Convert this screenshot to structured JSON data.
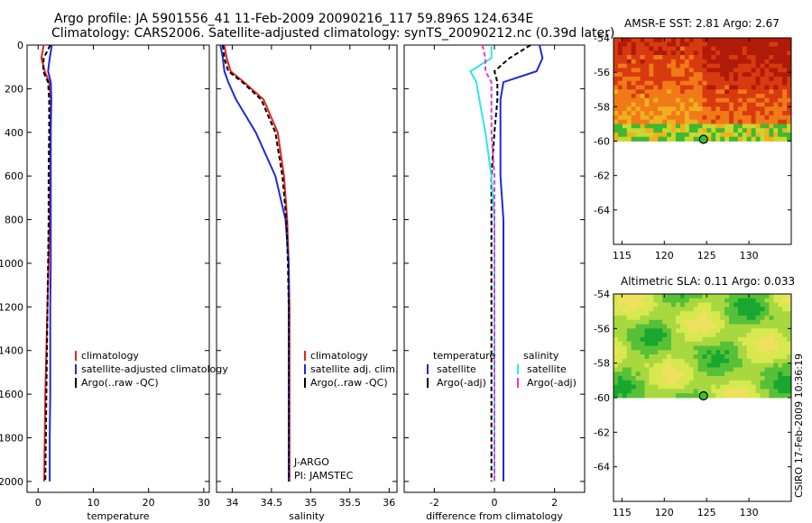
{
  "header": {
    "title_line1": "Argo profile: JA 5901556_41 11-Feb-2009 20090216_117 59.896S 124.634E",
    "title_line2": "Climatology: CARS2006. Satellite-adjusted climatology: synTS_20090212.nc (0.39d later)"
  },
  "side_label": "CSIRO 17-Feb-2009 10:36:19",
  "colors": {
    "climatology": "#e8241b",
    "satellite": "#1f2bd8",
    "argo": "#000000",
    "satellite_salinity": "#2ee6e6",
    "argo_salinity_adj": "#e23ad8"
  },
  "chart_data": [
    {
      "type": "line",
      "xlabel": "temperature",
      "ylim": [
        2050,
        0
      ],
      "xlim": [
        -2,
        31
      ],
      "yticks": [
        0,
        200,
        400,
        600,
        800,
        1000,
        1200,
        1400,
        1600,
        1800,
        2000
      ],
      "xticks": [
        0,
        10,
        20,
        30
      ],
      "legend": [
        "climatology",
        "satellite-adjusted climatology",
        "Argo(..raw -QC)"
      ],
      "series": [
        {
          "name": "climatology",
          "x": [
            1.0,
            0.6,
            1.2,
            2.0,
            2.3,
            2.2,
            2.2,
            2.1,
            1.9,
            1.7,
            1.5,
            1.3,
            1.2,
            1.1
          ],
          "y": [
            0,
            60,
            120,
            170,
            250,
            400,
            600,
            800,
            1000,
            1200,
            1400,
            1600,
            1800,
            2000
          ]
        },
        {
          "name": "satellite-adjusted climatology",
          "x": [
            2.5,
            2.1,
            1.8,
            2.3,
            2.4,
            2.3,
            2.3,
            2.3,
            2.3,
            2.2,
            2.2,
            2.2,
            2.1,
            2.1
          ],
          "y": [
            0,
            60,
            120,
            170,
            250,
            400,
            600,
            800,
            1000,
            1200,
            1400,
            1600,
            1800,
            2000
          ]
        },
        {
          "name": "Argo(..raw -QC)",
          "x": [
            2.2,
            1.0,
            0.9,
            1.8,
            2.0,
            2.0,
            1.9,
            1.9,
            1.8,
            1.7,
            1.6,
            1.5,
            1.4,
            1.3
          ],
          "y": [
            0,
            60,
            120,
            170,
            250,
            400,
            600,
            800,
            1000,
            1200,
            1400,
            1600,
            1800,
            2000
          ]
        }
      ]
    },
    {
      "type": "line",
      "xlabel": "salinity",
      "ylim": [
        2050,
        0
      ],
      "xlim": [
        33.8,
        36.1
      ],
      "xticks": [
        34,
        34.5,
        35,
        35.5,
        36
      ],
      "legend": [
        "climatology",
        "satellite adj. clim.",
        "Argo(..raw -QC)"
      ],
      "annotation": [
        "J-ARGO",
        "PI: JAMSTEC"
      ],
      "series": [
        {
          "name": "climatology",
          "x": [
            33.9,
            33.93,
            33.98,
            34.15,
            34.4,
            34.58,
            34.66,
            34.7,
            34.72,
            34.73,
            34.73,
            34.73,
            34.73,
            34.73
          ],
          "y": [
            0,
            60,
            120,
            170,
            250,
            400,
            600,
            800,
            1000,
            1200,
            1400,
            1600,
            1800,
            2000
          ]
        },
        {
          "name": "satellite adj. clim.",
          "x": [
            33.85,
            33.88,
            33.9,
            33.95,
            34.05,
            34.3,
            34.55,
            34.68,
            34.72,
            34.72,
            34.72,
            34.72,
            34.72,
            34.72
          ],
          "y": [
            0,
            60,
            120,
            170,
            250,
            400,
            600,
            800,
            1000,
            1200,
            1400,
            1600,
            1800,
            2000
          ]
        },
        {
          "name": "Argo(..raw -QC)",
          "x": [
            33.88,
            33.9,
            33.95,
            34.13,
            34.37,
            34.55,
            34.64,
            34.69,
            34.71,
            34.72,
            34.72,
            34.72,
            34.72,
            34.72
          ],
          "y": [
            0,
            60,
            120,
            170,
            250,
            400,
            600,
            800,
            1000,
            1200,
            1400,
            1600,
            1800,
            2000
          ]
        }
      ]
    },
    {
      "type": "line",
      "xlabel": "difference from climatology",
      "ylim": [
        2050,
        0
      ],
      "xlim": [
        -3,
        3
      ],
      "xticks": [
        -2,
        0,
        2
      ],
      "legend": [
        "temperature",
        "satellite",
        "Argo(-adj)",
        "salinity",
        "satellite",
        "Argo(-adj)"
      ],
      "series": [
        {
          "name": "temperature satellite",
          "x": [
            1.5,
            1.6,
            1.4,
            0.3,
            0.2,
            0.2,
            0.2,
            0.3,
            0.3,
            0.3,
            0.3,
            0.3,
            0.3,
            0.3
          ],
          "y": [
            0,
            60,
            120,
            170,
            250,
            400,
            600,
            800,
            1000,
            1200,
            1400,
            1600,
            1800,
            2000
          ]
        },
        {
          "name": "temperature Argo(-adj)",
          "x": [
            1.2,
            0.5,
            0.0,
            0.1,
            0.1,
            0.0,
            -0.1,
            -0.1,
            -0.1,
            -0.1,
            -0.1,
            -0.1,
            -0.1,
            -0.1
          ],
          "y": [
            0,
            60,
            120,
            170,
            250,
            400,
            600,
            800,
            1000,
            1200,
            1400,
            1600,
            1800,
            2000
          ]
        },
        {
          "name": "salinity satellite",
          "x": [
            -0.1,
            -0.1,
            -0.8,
            -0.6,
            -0.5,
            -0.3,
            -0.1,
            0.0,
            0.0,
            0.0,
            0.0,
            0.0,
            0.0,
            0.0
          ],
          "y": [
            0,
            60,
            120,
            170,
            250,
            400,
            600,
            800,
            1000,
            1200,
            1400,
            1600,
            1800,
            2000
          ]
        },
        {
          "name": "salinity Argo(-adj)",
          "x": [
            -0.4,
            -0.3,
            -0.3,
            -0.1,
            -0.1,
            -0.1,
            0.0,
            0.0,
            0.0,
            0.0,
            0.0,
            0.0,
            0.0,
            0.0
          ],
          "y": [
            0,
            60,
            120,
            170,
            250,
            400,
            600,
            800,
            1000,
            1200,
            1400,
            1600,
            1800,
            2000
          ]
        }
      ]
    },
    {
      "type": "heatmap",
      "title": "AMSR-E SST: 2.81  Argo: 2.67",
      "xlim": [
        114,
        135
      ],
      "ylim": [
        -66,
        -54
      ],
      "xticks": [
        115,
        120,
        125,
        130
      ],
      "yticks": [
        -54,
        -56,
        -58,
        -60,
        -62,
        -64
      ],
      "data_lat_range": [
        -60,
        -54
      ],
      "colormap": [
        "#b01a08",
        "#d83a10",
        "#f07a18",
        "#f0b020",
        "#c8d830",
        "#40b830"
      ],
      "marker": {
        "lon": 124.634,
        "lat": -59.896
      }
    },
    {
      "type": "heatmap",
      "title": "Altimetric SLA: 0.11  Argo: 0.033",
      "xlim": [
        114,
        135
      ],
      "ylim": [
        -66,
        -54
      ],
      "xticks": [
        115,
        120,
        125,
        130
      ],
      "yticks": [
        -54,
        -56,
        -58,
        -60,
        -62,
        -64
      ],
      "data_lat_range": [
        -60,
        -54
      ],
      "colormap": [
        "#18a830",
        "#58c038",
        "#a8d840",
        "#d8e850",
        "#f0e060"
      ],
      "marker": {
        "lon": 124.634,
        "lat": -59.896
      }
    }
  ]
}
